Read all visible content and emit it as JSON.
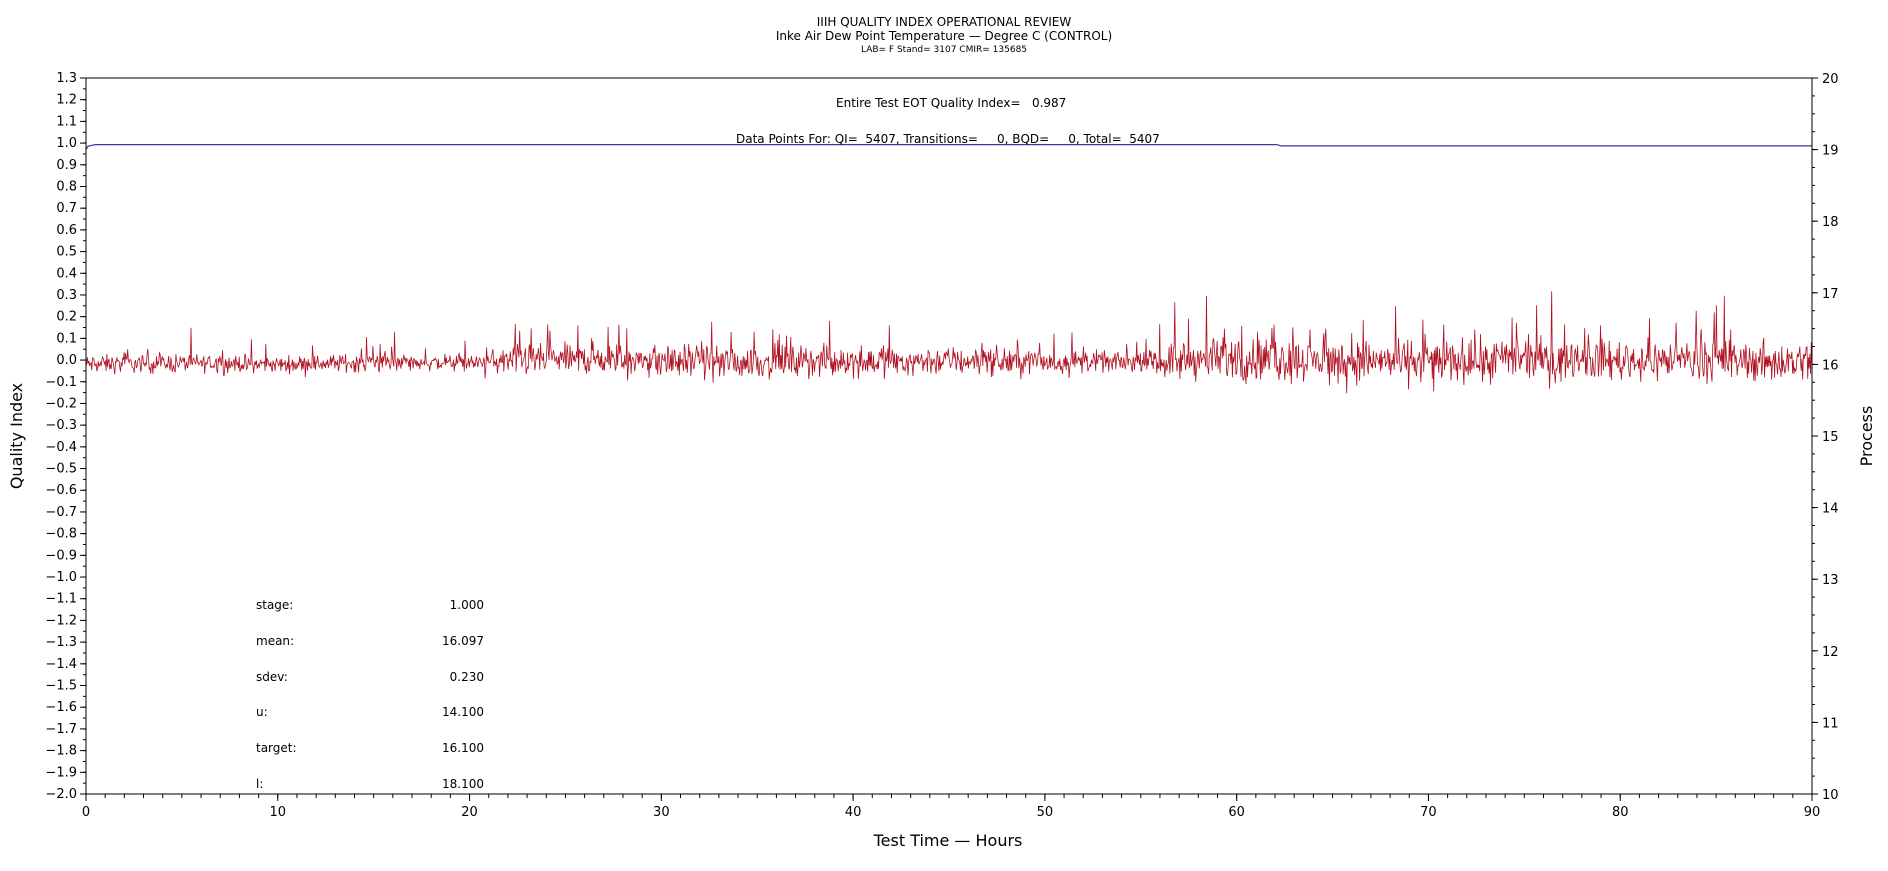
{
  "header": {
    "title": "IIIH QUALITY INDEX OPERATIONAL REVIEW",
    "subtitle": "Inke Air Dew Point Temperature — Degree C (CONTROL)",
    "info": "LAB= F Stand= 3107 CMIR= 135685"
  },
  "annotations": {
    "quality_index": "Entire Test EOT Quality Index=   0.987",
    "data_points": "Data Points For: QI=  5407, Transitions=     0, BQD=     0, Total=  5407"
  },
  "stats": [
    {
      "label": "stage:",
      "value": "1.000"
    },
    {
      "label": "mean:",
      "value": "16.097"
    },
    {
      "label": "sdev:",
      "value": "0.230"
    },
    {
      "label": "u:",
      "value": "14.100"
    },
    {
      "label": "target:",
      "value": "16.100"
    },
    {
      "label": "l:",
      "value": "18.100"
    }
  ],
  "colors": {
    "qi_line": "#3a3aa0",
    "process_line": "#b01020",
    "axis": "#000000"
  },
  "chart_data": {
    "type": "line",
    "xlabel": "Test Time — Hours",
    "ylabel": "Quality Index",
    "y2label": "Process",
    "xlim": [
      0,
      90
    ],
    "ylim": [
      -2.0,
      1.3
    ],
    "y2lim": [
      10,
      20
    ],
    "x_ticks": [
      0,
      10,
      20,
      30,
      40,
      50,
      60,
      70,
      80,
      90
    ],
    "y_ticks": [
      1.3,
      1.2,
      1.1,
      1.0,
      0.9,
      0.8,
      0.7,
      0.6,
      0.5,
      0.4,
      0.3,
      0.2,
      0.1,
      0.0,
      -0.1,
      -0.2,
      -0.3,
      -0.4,
      -0.5,
      -0.6,
      -0.7,
      -0.8,
      -0.9,
      -1.0,
      -1.1,
      -1.2,
      -1.3,
      -1.4,
      -1.5,
      -1.6,
      -1.7,
      -1.8,
      -1.9,
      -2.0
    ],
    "y_tick_labels": [
      "1.3",
      "1.2",
      "1.1",
      "1.0",
      "0.9",
      "0.8",
      "0.7",
      "0.6",
      "0.5",
      "0.4",
      "0.3",
      "0.2",
      "0.1",
      "0.0",
      "−0.1",
      "−0.2",
      "−0.3",
      "−0.4",
      "−0.5",
      "−0.6",
      "−0.7",
      "−0.8",
      "−0.9",
      "−1.0",
      "−1.1",
      "−1.2",
      "−1.3",
      "−1.4",
      "−1.5",
      "−1.6",
      "−1.7",
      "−1.8",
      "−1.9",
      "−2.0"
    ],
    "y2_ticks": [
      20,
      19,
      18,
      17,
      16,
      15,
      14,
      13,
      12,
      11,
      10
    ],
    "series": [
      {
        "axis": "left",
        "x": [
          0,
          0.1,
          0.3,
          0.5,
          1,
          10,
          20,
          30,
          40,
          50,
          60,
          62.1,
          62.3,
          70,
          80,
          90
        ],
        "values": [
          0.97,
          0.985,
          0.99,
          0.993,
          0.993,
          0.993,
          0.993,
          0.993,
          0.993,
          0.993,
          0.993,
          0.993,
          0.987,
          0.987,
          0.987,
          0.987
        ]
      },
      {
        "axis": "right",
        "x": [
          0,
          5,
          10,
          15,
          20,
          22,
          25,
          30,
          35,
          40,
          45,
          50,
          55,
          57,
          60,
          65,
          70,
          75,
          80,
          85,
          90
        ],
        "values": [
          16.0,
          16.02,
          16.0,
          16.03,
          16.02,
          16.05,
          16.08,
          16.05,
          16.03,
          16.05,
          16.05,
          16.04,
          16.03,
          16.05,
          16.08,
          16.05,
          16.05,
          16.07,
          16.06,
          16.05,
          16.04
        ],
        "spread": [
          0.35,
          0.35,
          0.3,
          0.35,
          0.3,
          0.55,
          0.55,
          0.6,
          0.6,
          0.55,
          0.55,
          0.5,
          0.3,
          0.75,
          0.8,
          0.75,
          0.8,
          0.8,
          0.75,
          0.75,
          0.75
        ]
      }
    ]
  }
}
